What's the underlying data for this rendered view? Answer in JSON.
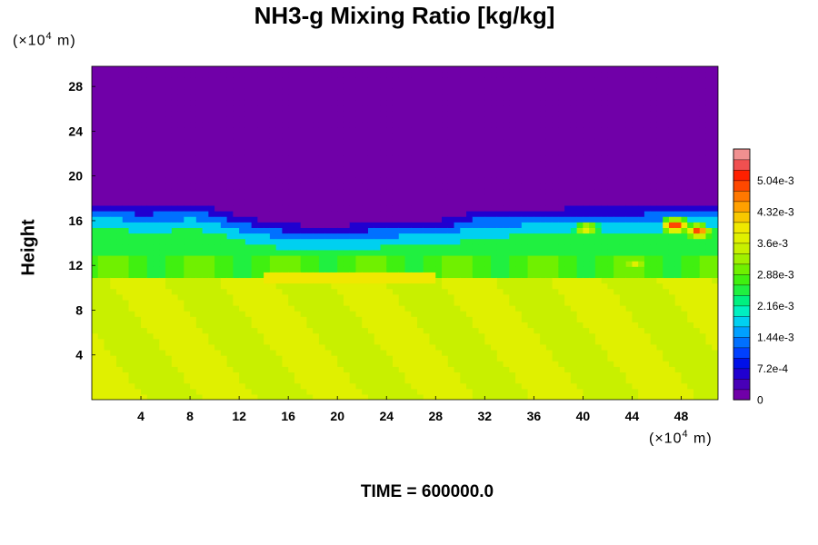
{
  "chart_data": {
    "type": "heatmap",
    "title": "NH3-g Mixing Ratio [kg/kg]",
    "ylabel": "Height",
    "xlabel": "",
    "x_unit": {
      "prefix": "(×10",
      "exp": "4",
      "suffix": " m)"
    },
    "y_unit": {
      "prefix": "(×10",
      "exp": "4",
      "suffix": " m)"
    },
    "xlim": [
      0,
      51
    ],
    "ylim": [
      0,
      29.8
    ],
    "x_ticks": [
      4,
      8,
      12,
      16,
      20,
      24,
      28,
      32,
      36,
      40,
      44,
      48
    ],
    "y_ticks": [
      4,
      8,
      12,
      16,
      20,
      24,
      28
    ],
    "colorbar": {
      "min": 0,
      "max": 0.00576,
      "levels": 24,
      "tick_values": [
        0,
        0.00072,
        0.00144,
        0.00216,
        0.00288,
        0.0036,
        0.00432,
        0.00504
      ],
      "tick_labels": [
        "0",
        "7.2e-4",
        "1.44e-3",
        "2.16e-3",
        "2.88e-3",
        "3.6e-3",
        "4.32e-3",
        "5.04e-3"
      ],
      "colors": [
        "#7000a8",
        "#4800b8",
        "#2000d0",
        "#0010e8",
        "#0040ff",
        "#0070ff",
        "#00a0ff",
        "#00d0f0",
        "#00f0c0",
        "#00f080",
        "#20f040",
        "#40f010",
        "#70f000",
        "#a0f000",
        "#c8f000",
        "#e0f000",
        "#f0e800",
        "#f8c800",
        "#ffa000",
        "#ff7800",
        "#ff4800",
        "#ff2000",
        "#f05050",
        "#f09090"
      ]
    },
    "field_description": "vertical cross-section",
    "profile": {
      "x": [
        0,
        2,
        4,
        6,
        8,
        10,
        12,
        14,
        16,
        18,
        20,
        22,
        24,
        26,
        28,
        29.5,
        31,
        33,
        36,
        40,
        44,
        48,
        51
      ],
      "top_km": [
        17.6,
        17.5,
        17.2,
        17.3,
        17.5,
        17.1,
        16.5,
        16.0,
        15.7,
        15.6,
        15.6,
        15.7,
        15.9,
        16.0,
        16.1,
        16.2,
        16.8,
        16.8,
        17.0,
        17.2,
        17.2,
        17.4,
        17.6
      ]
    },
    "plumes": [
      {
        "x": 47.5,
        "y": 15.6,
        "peak": 0.0056
      },
      {
        "x": 49.4,
        "y": 15.1,
        "peak": 0.0052
      },
      {
        "x": 40.3,
        "y": 15.3,
        "peak": 0.0042
      },
      {
        "x": 44.2,
        "y": 12.3,
        "peak": 0.0042
      }
    ],
    "lower_value": 0.0036,
    "band_value": 0.0025
  },
  "footer": {
    "time_label": "TIME = 600000.0"
  }
}
